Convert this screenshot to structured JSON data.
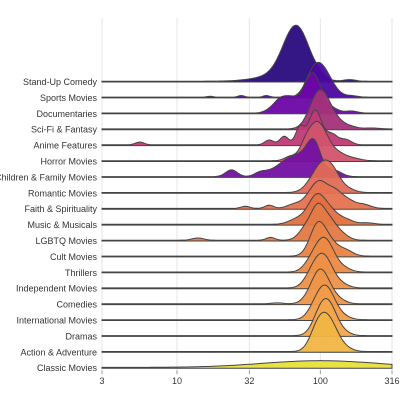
{
  "chart_data": {
    "type": "ridgeline",
    "title": "",
    "xlabel": "",
    "ylabel": "",
    "x_scale": "log10",
    "xlim": [
      3,
      316
    ],
    "x_ticks": [
      3,
      10,
      32,
      100,
      316
    ],
    "x_tick_labels": [
      "3",
      "10",
      "32",
      "100",
      "316"
    ],
    "grid": true,
    "legend": "none",
    "categories": [
      "Stand-Up Comedy",
      "Sports Movies",
      "Documentaries",
      "Sci-Fi & Fantasy",
      "Anime Features",
      "Horror Movies",
      "Children & Family Movies",
      "Romantic Movies",
      "Faith & Spirituality",
      "Music & Musicals",
      "LGBTQ Movies",
      "Cult Movies",
      "Thrillers",
      "Independent Movies",
      "Comedies",
      "International Movies",
      "Dramas",
      "Action & Adventure",
      "Classic Movies"
    ],
    "series": [
      {
        "name": "Stand-Up Comedy",
        "color": "#2a0a7e",
        "height": 1.0,
        "peaks": [
          [
            68,
            0.09,
            1.0
          ],
          [
            50,
            0.15,
            0.1
          ],
          [
            100,
            0.03,
            0.04
          ],
          [
            160,
            0.04,
            0.03
          ]
        ]
      },
      {
        "name": "Sports Movies",
        "color": "#4b08a0",
        "height": 0.62,
        "peaks": [
          [
            98,
            0.06,
            1.0
          ],
          [
            85,
            0.05,
            0.35
          ],
          [
            115,
            0.05,
            0.25
          ],
          [
            17,
            0.02,
            0.03
          ],
          [
            28,
            0.02,
            0.06
          ],
          [
            42,
            0.02,
            0.06
          ],
          [
            130,
            0.05,
            0.08
          ],
          [
            165,
            0.04,
            0.05
          ]
        ]
      },
      {
        "name": "Documentaries",
        "color": "#6d06a7",
        "height": 0.72,
        "peaks": [
          [
            88,
            0.06,
            1.0
          ],
          [
            62,
            0.05,
            0.35
          ],
          [
            52,
            0.04,
            0.25
          ],
          [
            45,
            0.04,
            0.08
          ],
          [
            120,
            0.05,
            0.1
          ],
          [
            165,
            0.04,
            0.05
          ]
        ]
      },
      {
        "name": "Sci-Fi & Fantasy",
        "color": "#a4317a",
        "height": 0.7,
        "peaks": [
          [
            95,
            0.06,
            1.0
          ],
          [
            110,
            0.05,
            0.45
          ],
          [
            130,
            0.05,
            0.22
          ],
          [
            160,
            0.05,
            0.08
          ],
          [
            230,
            0.05,
            0.03
          ]
        ]
      },
      {
        "name": "Anime Features",
        "color": "#c03a76",
        "height": 0.62,
        "peaks": [
          [
            92,
            0.045,
            1.0
          ],
          [
            72,
            0.03,
            0.5
          ],
          [
            56,
            0.03,
            0.25
          ],
          [
            44,
            0.03,
            0.14
          ],
          [
            5.5,
            0.03,
            0.08
          ],
          [
            120,
            0.04,
            0.3
          ],
          [
            150,
            0.04,
            0.15
          ]
        ]
      },
      {
        "name": "Horror Movies",
        "color": "#d2536b",
        "height": 0.7,
        "peaks": [
          [
            92,
            0.05,
            1.0
          ],
          [
            108,
            0.05,
            0.6
          ],
          [
            78,
            0.04,
            0.45
          ],
          [
            62,
            0.04,
            0.15
          ],
          [
            135,
            0.05,
            0.22
          ],
          [
            170,
            0.05,
            0.08
          ]
        ]
      },
      {
        "name": "Children & Family Movies",
        "color": "#7410a4",
        "height": 0.68,
        "peaks": [
          [
            90,
            0.05,
            1.0
          ],
          [
            70,
            0.06,
            0.55
          ],
          [
            56,
            0.05,
            0.3
          ],
          [
            24,
            0.04,
            0.2
          ],
          [
            38,
            0.04,
            0.12
          ],
          [
            46,
            0.05,
            0.15
          ],
          [
            125,
            0.05,
            0.18
          ]
        ]
      },
      {
        "name": "Romantic Movies",
        "color": "#e06b57",
        "height": 0.58,
        "peaks": [
          [
            106,
            0.06,
            1.0
          ],
          [
            125,
            0.05,
            0.55
          ],
          [
            90,
            0.06,
            0.4
          ],
          [
            155,
            0.05,
            0.15
          ]
        ]
      },
      {
        "name": "Faith & Spirituality",
        "color": "#e5724f",
        "height": 0.5,
        "peaks": [
          [
            100,
            0.05,
            1.0
          ],
          [
            125,
            0.05,
            0.75
          ],
          [
            85,
            0.05,
            0.5
          ],
          [
            155,
            0.05,
            0.35
          ],
          [
            200,
            0.05,
            0.18
          ],
          [
            44,
            0.03,
            0.15
          ],
          [
            30,
            0.03,
            0.1
          ],
          [
            66,
            0.05,
            0.2
          ]
        ]
      },
      {
        "name": "Music & Musicals",
        "color": "#e3703f",
        "height": 0.55,
        "peaks": [
          [
            100,
            0.05,
            1.0
          ],
          [
            88,
            0.05,
            0.75
          ],
          [
            120,
            0.05,
            0.55
          ],
          [
            70,
            0.06,
            0.3
          ],
          [
            150,
            0.05,
            0.25
          ],
          [
            210,
            0.05,
            0.08
          ]
        ]
      },
      {
        "name": "LGBTQ Movies",
        "color": "#e37944",
        "height": 0.66,
        "peaks": [
          [
            96,
            0.045,
            1.0
          ],
          [
            115,
            0.05,
            0.65
          ],
          [
            80,
            0.05,
            0.45
          ],
          [
            140,
            0.05,
            0.2
          ],
          [
            14,
            0.04,
            0.08
          ],
          [
            45,
            0.03,
            0.1
          ]
        ]
      },
      {
        "name": "Cult Movies",
        "color": "#e98345",
        "height": 0.62,
        "peaks": [
          [
            100,
            0.05,
            1.0
          ],
          [
            90,
            0.05,
            0.55
          ],
          [
            120,
            0.05,
            0.45
          ],
          [
            150,
            0.05,
            0.25
          ]
        ]
      },
      {
        "name": "Thrillers",
        "color": "#ec8a44",
        "height": 0.62,
        "peaks": [
          [
            102,
            0.055,
            1.0
          ],
          [
            118,
            0.05,
            0.5
          ],
          [
            85,
            0.05,
            0.3
          ],
          [
            145,
            0.05,
            0.15
          ]
        ]
      },
      {
        "name": "Independent Movies",
        "color": "#ee9047",
        "height": 0.62,
        "peaks": [
          [
            100,
            0.055,
            1.0
          ],
          [
            115,
            0.05,
            0.5
          ],
          [
            85,
            0.05,
            0.35
          ],
          [
            140,
            0.05,
            0.15
          ]
        ]
      },
      {
        "name": "Comedies",
        "color": "#ef9548",
        "height": 0.62,
        "peaks": [
          [
            98,
            0.05,
            1.0
          ],
          [
            112,
            0.05,
            0.55
          ],
          [
            85,
            0.05,
            0.3
          ],
          [
            135,
            0.05,
            0.15
          ],
          [
            50,
            0.04,
            0.04
          ]
        ]
      },
      {
        "name": "International Movies",
        "color": "#f19b49",
        "height": 0.62,
        "peaks": [
          [
            105,
            0.055,
            1.0
          ],
          [
            120,
            0.05,
            0.45
          ],
          [
            90,
            0.05,
            0.3
          ],
          [
            145,
            0.05,
            0.12
          ]
        ]
      },
      {
        "name": "Dramas",
        "color": "#f3a64a",
        "height": 0.66,
        "peaks": [
          [
            108,
            0.055,
            1.0
          ],
          [
            122,
            0.05,
            0.45
          ],
          [
            95,
            0.05,
            0.35
          ],
          [
            145,
            0.05,
            0.12
          ]
        ]
      },
      {
        "name": "Action & Adventure",
        "color": "#f0b545",
        "height": 0.7,
        "peaks": [
          [
            106,
            0.06,
            1.0
          ],
          [
            125,
            0.05,
            0.35
          ],
          [
            92,
            0.05,
            0.3
          ],
          [
            150,
            0.05,
            0.1
          ]
        ]
      },
      {
        "name": "Classic Movies",
        "color": "#e8e03a",
        "height": 0.12,
        "peaks": [
          [
            100,
            0.4,
            1.0
          ]
        ]
      }
    ]
  }
}
